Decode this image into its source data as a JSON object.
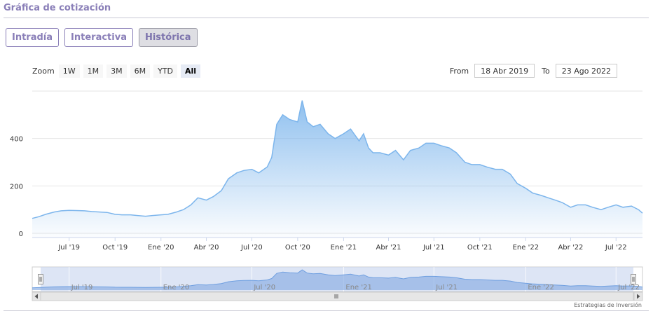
{
  "header": {
    "title": "Gráfica de cotización"
  },
  "tabs": [
    {
      "label": "Intradía",
      "active": false
    },
    {
      "label": "Interactiva",
      "active": false
    },
    {
      "label": "Histórica",
      "active": true
    }
  ],
  "zoom": {
    "label": "Zoom",
    "buttons": [
      "1W",
      "1M",
      "3M",
      "6M",
      "YTD",
      "All"
    ],
    "selected": "All"
  },
  "range": {
    "from_label": "From",
    "from_value": "18 Abr 2019",
    "to_label": "To",
    "to_value": "23 Ago 2022"
  },
  "credit": "Estrategias de Inversión",
  "colors": {
    "accent": "#8a7fb8",
    "line": "#7cb5ec",
    "navigator_fill": "#c6d3ee"
  },
  "chart_data": {
    "type": "area",
    "ylim": [
      0,
      600
    ],
    "y_ticks": [
      0,
      200,
      400
    ],
    "x_range": [
      "2019-04-18",
      "2022-08-23"
    ],
    "x_ticks": [
      {
        "date": "2019-07-01",
        "label": "Jul '19"
      },
      {
        "date": "2019-10-01",
        "label": "Oct '19"
      },
      {
        "date": "2020-01-01",
        "label": "Ene '20"
      },
      {
        "date": "2020-04-01",
        "label": "Abr '20"
      },
      {
        "date": "2020-07-01",
        "label": "Jul '20"
      },
      {
        "date": "2020-10-01",
        "label": "Oct '20"
      },
      {
        "date": "2021-01-01",
        "label": "Ene '21"
      },
      {
        "date": "2021-04-01",
        "label": "Abr '21"
      },
      {
        "date": "2021-07-01",
        "label": "Jul '21"
      },
      {
        "date": "2021-10-01",
        "label": "Oct '21"
      },
      {
        "date": "2022-01-01",
        "label": "Ene '22"
      },
      {
        "date": "2022-04-01",
        "label": "Abr '22"
      },
      {
        "date": "2022-07-01",
        "label": "Jul '22"
      }
    ],
    "navigator_ticks": [
      {
        "date": "2019-07-01",
        "label": "Jul '19"
      },
      {
        "date": "2020-01-01",
        "label": "Ene '20"
      },
      {
        "date": "2020-07-01",
        "label": "Jul '20"
      },
      {
        "date": "2021-01-01",
        "label": "Ene '21"
      },
      {
        "date": "2021-07-01",
        "label": "Jul '21"
      },
      {
        "date": "2022-01-01",
        "label": "Ene '22"
      },
      {
        "date": "2022-07-01",
        "label": "Jul '22"
      }
    ],
    "series": [
      {
        "x": [
          "2019-04-18",
          "2019-05-01",
          "2019-05-15",
          "2019-06-01",
          "2019-06-15",
          "2019-07-01",
          "2019-07-15",
          "2019-08-01",
          "2019-08-15",
          "2019-09-01",
          "2019-09-15",
          "2019-10-01",
          "2019-10-15",
          "2019-11-01",
          "2019-11-15",
          "2019-12-01",
          "2019-12-15",
          "2020-01-01",
          "2020-01-15",
          "2020-02-01",
          "2020-02-15",
          "2020-03-01",
          "2020-03-15",
          "2020-04-01",
          "2020-04-15",
          "2020-05-01",
          "2020-05-15",
          "2020-06-01",
          "2020-06-15",
          "2020-07-01",
          "2020-07-15",
          "2020-08-01",
          "2020-08-10",
          "2020-08-20",
          "2020-09-01",
          "2020-09-15",
          "2020-10-01",
          "2020-10-10",
          "2020-10-20",
          "2020-11-01",
          "2020-11-15",
          "2020-12-01",
          "2020-12-15",
          "2021-01-01",
          "2021-01-15",
          "2021-02-01",
          "2021-02-10",
          "2021-02-20",
          "2021-03-01",
          "2021-03-15",
          "2021-04-01",
          "2021-04-15",
          "2021-05-01",
          "2021-05-15",
          "2021-06-01",
          "2021-06-15",
          "2021-07-01",
          "2021-07-15",
          "2021-08-01",
          "2021-08-15",
          "2021-09-01",
          "2021-09-15",
          "2021-10-01",
          "2021-10-15",
          "2021-11-01",
          "2021-11-15",
          "2021-12-01",
          "2021-12-15",
          "2022-01-01",
          "2022-01-15",
          "2022-02-01",
          "2022-02-15",
          "2022-03-01",
          "2022-03-15",
          "2022-04-01",
          "2022-04-15",
          "2022-05-01",
          "2022-05-15",
          "2022-06-01",
          "2022-06-15",
          "2022-07-01",
          "2022-07-15",
          "2022-08-01",
          "2022-08-15",
          "2022-08-23"
        ],
        "y": [
          63,
          70,
          80,
          90,
          95,
          97,
          96,
          95,
          92,
          90,
          88,
          80,
          78,
          78,
          75,
          72,
          75,
          78,
          80,
          90,
          100,
          120,
          150,
          140,
          155,
          180,
          230,
          255,
          265,
          270,
          255,
          280,
          320,
          460,
          500,
          480,
          470,
          560,
          470,
          450,
          460,
          420,
          400,
          420,
          440,
          390,
          420,
          360,
          340,
          340,
          330,
          350,
          310,
          350,
          360,
          380,
          380,
          370,
          360,
          340,
          300,
          290,
          290,
          280,
          270,
          270,
          250,
          210,
          190,
          170,
          160,
          150,
          140,
          130,
          110,
          120,
          120,
          110,
          100,
          110,
          120,
          110,
          115,
          100,
          85
        ]
      }
    ]
  }
}
